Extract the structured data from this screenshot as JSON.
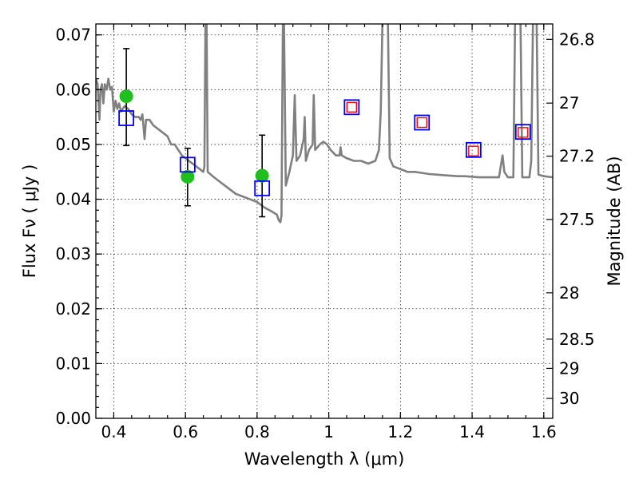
{
  "chart_data": {
    "type": "scatter",
    "xlabel": "Wavelength  λ (μm)",
    "ylabel": "Flux  Fν  ( μJy )",
    "ylabel_right": "Magnitude (AB)",
    "xlim": [
      0.35,
      1.625
    ],
    "ylim": [
      0.0,
      0.072
    ],
    "grid": true,
    "x_ticks": [
      {
        "value": 0.4,
        "label": "0.4"
      },
      {
        "value": 0.6,
        "label": "0.6"
      },
      {
        "value": 0.8,
        "label": "0.8"
      },
      {
        "value": 1.0,
        "label": "1"
      },
      {
        "value": 1.2,
        "label": "1.2"
      },
      {
        "value": 1.4,
        "label": "1.4"
      },
      {
        "value": 1.6,
        "label": "1.6"
      }
    ],
    "y_ticks": [
      {
        "value": 0.0,
        "label": "0.00"
      },
      {
        "value": 0.01,
        "label": "0.01"
      },
      {
        "value": 0.02,
        "label": "0.02"
      },
      {
        "value": 0.03,
        "label": "0.03"
      },
      {
        "value": 0.04,
        "label": "0.04"
      },
      {
        "value": 0.05,
        "label": "0.05"
      },
      {
        "value": 0.06,
        "label": "0.06"
      },
      {
        "value": 0.07,
        "label": "0.07"
      }
    ],
    "mag_ticks": [
      {
        "value": 26.8,
        "label": "26.8"
      },
      {
        "value": 27.0,
        "label": "27"
      },
      {
        "value": 27.2,
        "label": "27.2"
      },
      {
        "value": 27.5,
        "label": "27.5"
      },
      {
        "value": 28.0,
        "label": "28"
      },
      {
        "value": 28.5,
        "label": "28.5"
      },
      {
        "value": 29.0,
        "label": "29"
      },
      {
        "value": 30.0,
        "label": "30"
      }
    ],
    "model_spectrum": {
      "color": "#808080",
      "points": [
        [
          0.35,
          0.062
        ],
        [
          0.355,
          0.061
        ],
        [
          0.36,
          0.0545
        ],
        [
          0.363,
          0.06
        ],
        [
          0.367,
          0.061
        ],
        [
          0.371,
          0.0575
        ],
        [
          0.375,
          0.061
        ],
        [
          0.38,
          0.06
        ],
        [
          0.385,
          0.062
        ],
        [
          0.39,
          0.06
        ],
        [
          0.395,
          0.0605
        ],
        [
          0.4,
          0.056
        ],
        [
          0.405,
          0.058
        ],
        [
          0.41,
          0.0565
        ],
        [
          0.415,
          0.0575
        ],
        [
          0.42,
          0.056
        ],
        [
          0.43,
          0.057
        ],
        [
          0.44,
          0.0565
        ],
        [
          0.45,
          0.0555
        ],
        [
          0.46,
          0.055
        ],
        [
          0.47,
          0.055
        ],
        [
          0.475,
          0.0545
        ],
        [
          0.48,
          0.0555
        ],
        [
          0.486,
          0.051
        ],
        [
          0.49,
          0.0545
        ],
        [
          0.5,
          0.0545
        ],
        [
          0.51,
          0.0535
        ],
        [
          0.52,
          0.053
        ],
        [
          0.53,
          0.0525
        ],
        [
          0.54,
          0.052
        ],
        [
          0.55,
          0.0515
        ],
        [
          0.56,
          0.05
        ],
        [
          0.57,
          0.05
        ],
        [
          0.58,
          0.049
        ],
        [
          0.59,
          0.048
        ],
        [
          0.6,
          0.0475
        ],
        [
          0.61,
          0.047
        ],
        [
          0.62,
          0.0465
        ],
        [
          0.63,
          0.046
        ],
        [
          0.64,
          0.0455
        ],
        [
          0.65,
          0.045
        ],
        [
          0.653,
          0.046
        ],
        [
          0.656,
          0.073
        ],
        [
          0.659,
          0.073
        ],
        [
          0.662,
          0.045
        ],
        [
          0.68,
          0.044
        ],
        [
          0.7,
          0.043
        ],
        [
          0.72,
          0.042
        ],
        [
          0.74,
          0.041
        ],
        [
          0.76,
          0.0405
        ],
        [
          0.78,
          0.04
        ],
        [
          0.8,
          0.0395
        ],
        [
          0.82,
          0.0385
        ],
        [
          0.84,
          0.0378
        ],
        [
          0.855,
          0.0372
        ],
        [
          0.86,
          0.0362
        ],
        [
          0.865,
          0.0358
        ],
        [
          0.868,
          0.037
        ],
        [
          0.872,
          0.073
        ],
        [
          0.875,
          0.073
        ],
        [
          0.88,
          0.0425
        ],
        [
          0.89,
          0.045
        ],
        [
          0.9,
          0.048
        ],
        [
          0.905,
          0.059
        ],
        [
          0.91,
          0.047
        ],
        [
          0.92,
          0.048
        ],
        [
          0.93,
          0.051
        ],
        [
          0.933,
          0.055
        ],
        [
          0.936,
          0.047
        ],
        [
          0.945,
          0.049
        ],
        [
          0.955,
          0.05
        ],
        [
          0.958,
          0.059
        ],
        [
          0.962,
          0.049
        ],
        [
          0.975,
          0.05
        ],
        [
          0.985,
          0.0505
        ],
        [
          0.995,
          0.05
        ],
        [
          1.005,
          0.049
        ],
        [
          1.02,
          0.048
        ],
        [
          1.03,
          0.048
        ],
        [
          1.033,
          0.0495
        ],
        [
          1.036,
          0.048
        ],
        [
          1.05,
          0.0475
        ],
        [
          1.07,
          0.047
        ],
        [
          1.09,
          0.047
        ],
        [
          1.11,
          0.0465
        ],
        [
          1.13,
          0.047
        ],
        [
          1.14,
          0.049
        ],
        [
          1.145,
          0.056
        ],
        [
          1.15,
          0.073
        ],
        [
          1.165,
          0.073
        ],
        [
          1.17,
          0.0475
        ],
        [
          1.18,
          0.046
        ],
        [
          1.2,
          0.0455
        ],
        [
          1.22,
          0.045
        ],
        [
          1.24,
          0.045
        ],
        [
          1.26,
          0.0448
        ],
        [
          1.28,
          0.0446
        ],
        [
          1.3,
          0.0445
        ],
        [
          1.32,
          0.0444
        ],
        [
          1.34,
          0.0443
        ],
        [
          1.36,
          0.0442
        ],
        [
          1.38,
          0.0442
        ],
        [
          1.4,
          0.0441
        ],
        [
          1.42,
          0.044
        ],
        [
          1.44,
          0.044
        ],
        [
          1.46,
          0.044
        ],
        [
          1.475,
          0.044
        ],
        [
          1.48,
          0.046
        ],
        [
          1.485,
          0.048
        ],
        [
          1.49,
          0.045
        ],
        [
          1.5,
          0.044
        ],
        [
          1.515,
          0.044
        ],
        [
          1.52,
          0.073
        ],
        [
          1.535,
          0.073
        ],
        [
          1.54,
          0.044
        ],
        [
          1.56,
          0.044
        ],
        [
          1.565,
          0.047
        ],
        [
          1.57,
          0.073
        ],
        [
          1.58,
          0.073
        ],
        [
          1.585,
          0.0445
        ],
        [
          1.6,
          0.0442
        ],
        [
          1.625,
          0.044
        ]
      ]
    },
    "observed": {
      "color": "#1fbf1f",
      "points": [
        {
          "x": 0.435,
          "y": 0.0588,
          "yerr_low": 0.0498,
          "yerr_high": 0.0675
        },
        {
          "x": 0.606,
          "y": 0.0441,
          "yerr_low": 0.0388,
          "yerr_high": 0.0493
        },
        {
          "x": 0.814,
          "y": 0.0443,
          "yerr_low": 0.0368,
          "yerr_high": 0.0517
        }
      ]
    },
    "model_photometry": {
      "color": "#0000ff",
      "points": [
        {
          "x": 0.435,
          "y": 0.0548
        },
        {
          "x": 0.606,
          "y": 0.0463
        },
        {
          "x": 0.814,
          "y": 0.042
        },
        {
          "x": 1.064,
          "y": 0.0568
        },
        {
          "x": 1.26,
          "y": 0.054
        },
        {
          "x": 1.404,
          "y": 0.049
        },
        {
          "x": 1.542,
          "y": 0.0523
        }
      ]
    },
    "predicted_photometry": {
      "color": "#ff0000",
      "points": [
        {
          "x": 1.064,
          "y": 0.0568
        },
        {
          "x": 1.26,
          "y": 0.054
        },
        {
          "x": 1.404,
          "y": 0.0488
        },
        {
          "x": 1.542,
          "y": 0.0522
        }
      ]
    }
  }
}
